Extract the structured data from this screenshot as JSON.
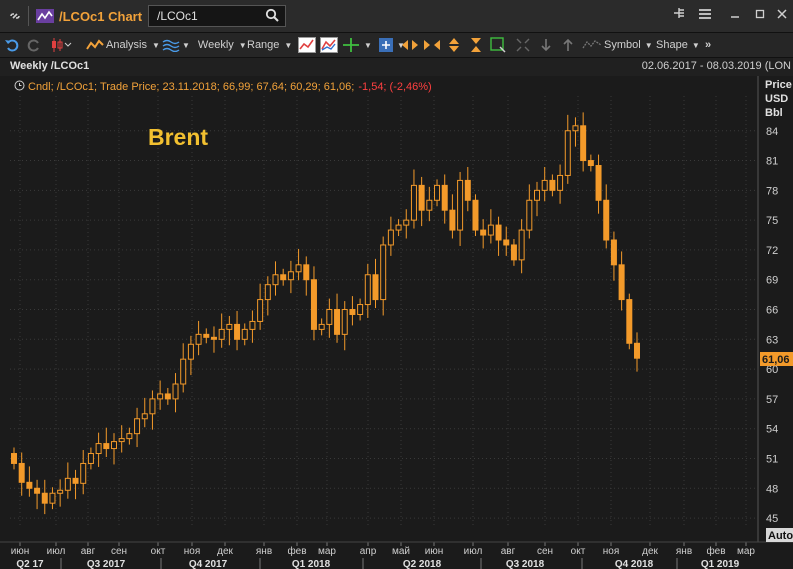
{
  "window": {
    "title": "/LCOc1 Chart",
    "search_value": "/LCOc1"
  },
  "toolbar": {
    "analysis_label": "Analysis",
    "interval_label": "Weekly",
    "range_label": "Range",
    "symbol_label": "Symbol",
    "shape_label": "Shape"
  },
  "header": {
    "title": "Weekly /LCOc1",
    "date_range": "02.06.2017 - 08.03.2019 (LON",
    "legend_prefix": "Cndl; /LCOc1; Trade Price; 23.11.2018; 66,99; 67,64; 60,29; 61,06;",
    "legend_change": "-1,54; (-2,46%)",
    "price_unit_1": "Price",
    "price_unit_2": "USD",
    "price_unit_3": "Bbl"
  },
  "annotation": "Brent",
  "last_price_label": "61,06",
  "auto_label": "Auto",
  "colors": {
    "accent": "#f2a23a",
    "candle": "#f39a2a",
    "negative": "#ff4040",
    "background": "#1b1b1b",
    "grid": "#3a3a3a"
  },
  "chart_data": {
    "type": "candlestick",
    "instrument": "/LCOc1",
    "interval": "Weekly",
    "ylim": [
      44,
      88
    ],
    "y_ticks": [
      45,
      48,
      51,
      54,
      57,
      60,
      63,
      66,
      69,
      72,
      75,
      78,
      81,
      84
    ],
    "month_labels": [
      "июн",
      "июл",
      "авг",
      "сен",
      "окт",
      "ноя",
      "дек",
      "янв",
      "фев",
      "мар",
      "апр",
      "май",
      "июн",
      "июл",
      "авг",
      "сен",
      "окт",
      "ноя",
      "дек",
      "янв",
      "фев",
      "мар"
    ],
    "quarter_labels": [
      "Q2 17",
      "Q3 2017",
      "Q4 2017",
      "Q1 2018",
      "Q2 2018",
      "Q3 2018",
      "Q4 2018",
      "Q1 2019"
    ],
    "close_series": [
      50.5,
      48.6,
      48.0,
      47.5,
      46.5,
      47.5,
      47.8,
      49.0,
      48.5,
      50.5,
      51.5,
      52.5,
      52.0,
      52.7,
      53.0,
      53.5,
      55.0,
      55.5,
      57.0,
      57.5,
      57.0,
      58.5,
      61.0,
      62.5,
      63.5,
      63.2,
      63.0,
      64.0,
      64.5,
      63.0,
      64.0,
      64.8,
      67.0,
      68.5,
      69.5,
      69.0,
      69.8,
      70.5,
      69.0,
      64.0,
      64.5,
      66.0,
      63.5,
      66.0,
      65.5,
      66.5,
      69.5,
      67.0,
      72.5,
      74.0,
      74.5,
      75.0,
      78.5,
      76.0,
      77.0,
      78.5,
      76.0,
      74.0,
      79.0,
      77.0,
      74.0,
      73.5,
      74.5,
      73.0,
      72.5,
      71.0,
      74.0,
      77.0,
      78.0,
      79.0,
      78.0,
      79.5,
      84.0,
      84.5,
      81.0,
      80.5,
      77.0,
      73.0,
      70.5,
      67.0,
      62.6,
      61.1
    ]
  }
}
